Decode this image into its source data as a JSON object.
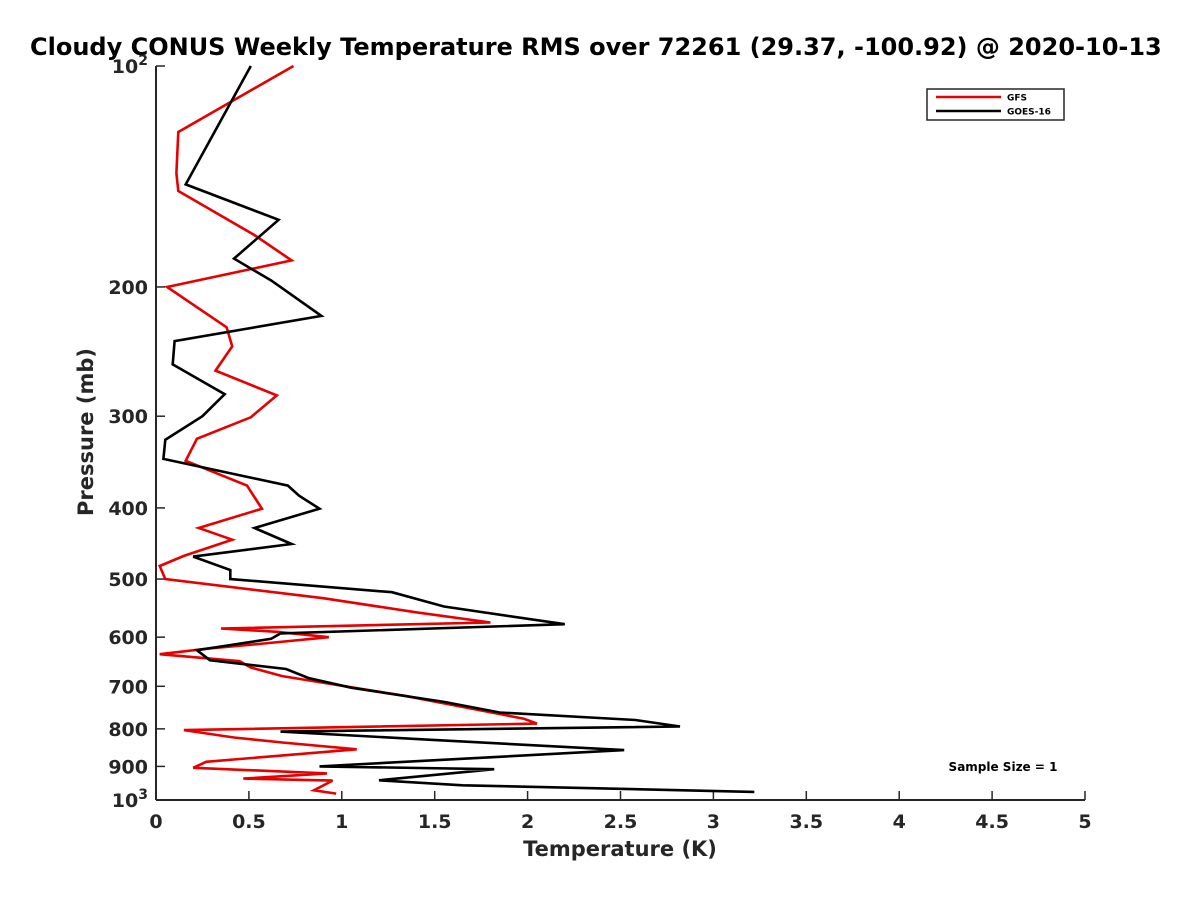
{
  "chart_data": {
    "type": "line",
    "title": "Cloudy CONUS Weekly Temperature RMS over 72261 (29.37, -100.92) @ 2020-10-13",
    "xlabel": "Temperature (K)",
    "ylabel": "Pressure (mb)",
    "xlim": [
      0,
      5
    ],
    "ylim": [
      100,
      1000
    ],
    "y_scale": "log",
    "y_reversed": true,
    "grid": false,
    "legend_position": "top-right",
    "annotation": "Sample Size = 1",
    "x_ticks": [
      {
        "value": 0,
        "label": "0"
      },
      {
        "value": 0.5,
        "label": "0.5"
      },
      {
        "value": 1,
        "label": "1"
      },
      {
        "value": 1.5,
        "label": "1.5"
      },
      {
        "value": 2,
        "label": "2"
      },
      {
        "value": 2.5,
        "label": "2.5"
      },
      {
        "value": 3,
        "label": "3"
      },
      {
        "value": 3.5,
        "label": "3.5"
      },
      {
        "value": 4,
        "label": "4"
      },
      {
        "value": 4.5,
        "label": "4.5"
      },
      {
        "value": 5,
        "label": "5"
      }
    ],
    "y_ticks": [
      {
        "value": 100,
        "label": "10",
        "sup": "2"
      },
      {
        "value": 200,
        "label": "200"
      },
      {
        "value": 300,
        "label": "300"
      },
      {
        "value": 400,
        "label": "400"
      },
      {
        "value": 500,
        "label": "500"
      },
      {
        "value": 600,
        "label": "600"
      },
      {
        "value": 700,
        "label": "700"
      },
      {
        "value": 800,
        "label": "800"
      },
      {
        "value": 900,
        "label": "900"
      },
      {
        "value": 1000,
        "label": "10",
        "sup": "3"
      }
    ],
    "series": [
      {
        "name": "GFS",
        "color": "#e60000",
        "points": [
          [
            0.74,
            100
          ],
          [
            0.12,
            123
          ],
          [
            0.11,
            140
          ],
          [
            0.12,
            148
          ],
          [
            0.53,
            170
          ],
          [
            0.73,
            184
          ],
          [
            0.06,
            200
          ],
          [
            0.38,
            227
          ],
          [
            0.41,
            241
          ],
          [
            0.32,
            260
          ],
          [
            0.65,
            281
          ],
          [
            0.51,
            301
          ],
          [
            0.22,
            322
          ],
          [
            0.16,
            345
          ],
          [
            0.49,
            373
          ],
          [
            0.57,
            401
          ],
          [
            0.23,
            426
          ],
          [
            0.41,
            442
          ],
          [
            0.15,
            465
          ],
          [
            0.02,
            480
          ],
          [
            0.05,
            500
          ],
          [
            0.9,
            531
          ],
          [
            1.4,
            555
          ],
          [
            1.8,
            573
          ],
          [
            0.35,
            584
          ],
          [
            0.65,
            590
          ],
          [
            0.93,
            600
          ],
          [
            0.58,
            612
          ],
          [
            0.28,
            622
          ],
          [
            0.02,
            633
          ],
          [
            0.45,
            647
          ],
          [
            0.51,
            660
          ],
          [
            0.68,
            678
          ],
          [
            1.35,
            722
          ],
          [
            1.98,
            775
          ],
          [
            2.05,
            787
          ],
          [
            0.15,
            803
          ],
          [
            0.42,
            822
          ],
          [
            0.68,
            835
          ],
          [
            1.08,
            853
          ],
          [
            0.27,
            887
          ],
          [
            0.2,
            904
          ],
          [
            0.92,
            920
          ],
          [
            0.47,
            935
          ],
          [
            0.95,
            941
          ],
          [
            0.85,
            970
          ],
          [
            0.97,
            980
          ]
        ]
      },
      {
        "name": "GOES-16",
        "color": "#000000",
        "points": [
          [
            0.51,
            100
          ],
          [
            0.16,
            145
          ],
          [
            0.66,
            162
          ],
          [
            0.42,
            183
          ],
          [
            0.62,
            196
          ],
          [
            0.89,
            219
          ],
          [
            0.1,
            237
          ],
          [
            0.09,
            255
          ],
          [
            0.37,
            280
          ],
          [
            0.25,
            300
          ],
          [
            0.05,
            323
          ],
          [
            0.04,
            343
          ],
          [
            0.71,
            373
          ],
          [
            0.77,
            385
          ],
          [
            0.88,
            401
          ],
          [
            0.53,
            426
          ],
          [
            0.73,
            448
          ],
          [
            0.2,
            466
          ],
          [
            0.4,
            486
          ],
          [
            0.4,
            500
          ],
          [
            1.27,
            521
          ],
          [
            1.55,
            545
          ],
          [
            2.2,
            576
          ],
          [
            0.67,
            593
          ],
          [
            0.62,
            603
          ],
          [
            0.22,
            625
          ],
          [
            0.29,
            645
          ],
          [
            0.7,
            663
          ],
          [
            0.82,
            682
          ],
          [
            1.05,
            703
          ],
          [
            1.55,
            735
          ],
          [
            1.85,
            760
          ],
          [
            2.58,
            778
          ],
          [
            2.82,
            794
          ],
          [
            0.67,
            807
          ],
          [
            1.48,
            828
          ],
          [
            2.52,
            855
          ],
          [
            0.88,
            900
          ],
          [
            1.82,
            908
          ],
          [
            1.2,
            940
          ],
          [
            1.65,
            955
          ],
          [
            3.22,
            975
          ]
        ]
      }
    ]
  }
}
